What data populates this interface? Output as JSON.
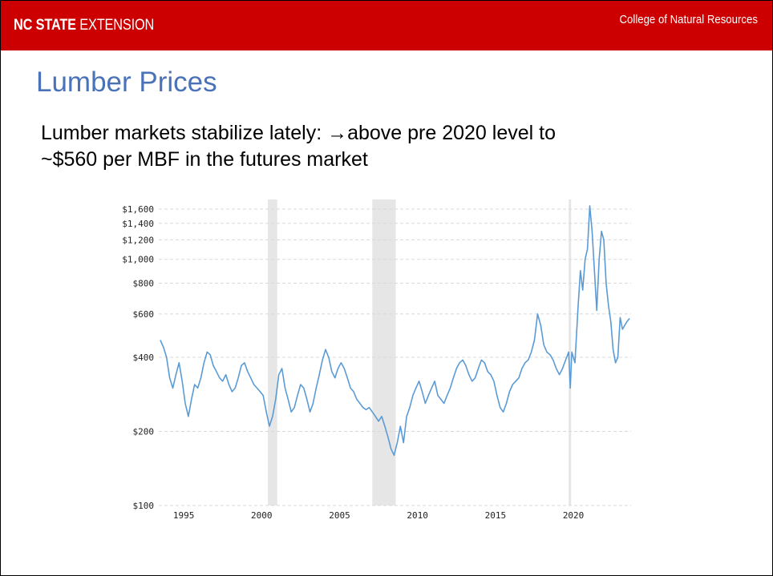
{
  "header": {
    "brand_strong": "NC STATE",
    "brand_rest": " EXTENSION",
    "college": "College of Natural Resources",
    "accent_color": "#cc0000"
  },
  "slide": {
    "title": "Lumber Prices",
    "body_line_1": "Lumber markets stabilize lately: →above pre 2020 level to",
    "body_line_2": "~$560 per MBF in the futures market",
    "title_color": "#4a72b8"
  },
  "chart_data": {
    "type": "line",
    "title": "",
    "xlabel": "",
    "ylabel": "",
    "y_scale": "log",
    "xlim": [
      1993.4,
      2023.7
    ],
    "ylim": [
      100,
      1750
    ],
    "grid": "horizontal-dashed",
    "line_color": "#5b9bd5",
    "y_ticks": [
      {
        "value": 100,
        "label": "$100"
      },
      {
        "value": 200,
        "label": "$200"
      },
      {
        "value": 400,
        "label": "$400"
      },
      {
        "value": 600,
        "label": "$600"
      },
      {
        "value": 800,
        "label": "$800"
      },
      {
        "value": 1000,
        "label": "$1,000"
      },
      {
        "value": 1200,
        "label": "$1,200"
      },
      {
        "value": 1400,
        "label": "$1,400"
      },
      {
        "value": 1600,
        "label": "$1,600"
      }
    ],
    "x_ticks": [
      {
        "value": 1995,
        "label": "1995"
      },
      {
        "value": 2000,
        "label": "2000"
      },
      {
        "value": 2005,
        "label": "2005"
      },
      {
        "value": 2010,
        "label": "2010"
      },
      {
        "value": 2015,
        "label": "2015"
      },
      {
        "value": 2020,
        "label": "2020"
      }
    ],
    "recessions": [
      {
        "start": 2000.4,
        "end": 2001.0
      },
      {
        "start": 2007.1,
        "end": 2008.6
      },
      {
        "start": 2019.7,
        "end": 2019.85
      }
    ],
    "series": [
      {
        "x": [
          1993.5,
          1993.7,
          1993.9,
          1994.1,
          1994.3,
          1994.5,
          1994.7,
          1994.9,
          1995.1,
          1995.3,
          1995.5,
          1995.7,
          1995.9,
          1996.1,
          1996.3,
          1996.5,
          1996.7,
          1996.9,
          1997.1,
          1997.3,
          1997.5,
          1997.7,
          1997.9,
          1998.1,
          1998.3,
          1998.5,
          1998.7,
          1998.9,
          1999.1,
          1999.3,
          1999.5,
          1999.7,
          1999.9,
          2000.1,
          2000.3,
          2000.5,
          2000.7,
          2000.9,
          2001.1,
          2001.3,
          2001.5,
          2001.7,
          2001.9,
          2002.1,
          2002.3,
          2002.5,
          2002.7,
          2002.9,
          2003.1,
          2003.3,
          2003.5,
          2003.7,
          2003.9,
          2004.1,
          2004.3,
          2004.5,
          2004.7,
          2004.9,
          2005.1,
          2005.3,
          2005.5,
          2005.7,
          2005.9,
          2006.1,
          2006.3,
          2006.5,
          2006.7,
          2006.9,
          2007.1,
          2007.3,
          2007.5,
          2007.7,
          2007.9,
          2008.1,
          2008.3,
          2008.5,
          2008.7,
          2008.9,
          2009.1,
          2009.3,
          2009.5,
          2009.7,
          2009.9,
          2010.1,
          2010.3,
          2010.5,
          2010.7,
          2010.9,
          2011.1,
          2011.3,
          2011.5,
          2011.7,
          2011.9,
          2012.1,
          2012.3,
          2012.5,
          2012.7,
          2012.9,
          2013.1,
          2013.3,
          2013.5,
          2013.7,
          2013.9,
          2014.1,
          2014.3,
          2014.5,
          2014.7,
          2014.9,
          2015.1,
          2015.3,
          2015.5,
          2015.7,
          2015.9,
          2016.1,
          2016.3,
          2016.5,
          2016.7,
          2016.9,
          2017.1,
          2017.3,
          2017.5,
          2017.7,
          2017.9,
          2018.1,
          2018.3,
          2018.5,
          2018.7,
          2018.9,
          2019.1,
          2019.3,
          2019.5,
          2019.7,
          2019.8,
          2019.9,
          2020.1,
          2020.3,
          2020.45,
          2020.6,
          2020.75,
          2020.9,
          2021.05,
          2021.2,
          2021.35,
          2021.5,
          2021.65,
          2021.8,
          2021.95,
          2022.1,
          2022.25,
          2022.4,
          2022.55,
          2022.7,
          2022.85,
          2023.0,
          2023.15,
          2023.3,
          2023.45,
          2023.6
        ],
        "y": [
          470,
          440,
          400,
          330,
          300,
          340,
          380,
          320,
          260,
          230,
          270,
          310,
          300,
          330,
          380,
          420,
          410,
          370,
          350,
          330,
          320,
          340,
          310,
          290,
          300,
          330,
          370,
          380,
          350,
          330,
          310,
          300,
          290,
          280,
          240,
          210,
          230,
          270,
          340,
          360,
          300,
          270,
          240,
          250,
          280,
          310,
          300,
          270,
          240,
          260,
          300,
          340,
          390,
          430,
          400,
          350,
          330,
          360,
          380,
          360,
          330,
          300,
          290,
          270,
          260,
          250,
          245,
          250,
          240,
          230,
          220,
          230,
          210,
          190,
          170,
          160,
          180,
          210,
          180,
          230,
          250,
          280,
          300,
          320,
          290,
          260,
          280,
          300,
          320,
          280,
          270,
          260,
          280,
          300,
          330,
          360,
          380,
          390,
          370,
          340,
          320,
          330,
          360,
          390,
          380,
          350,
          340,
          320,
          280,
          250,
          240,
          260,
          290,
          310,
          320,
          330,
          360,
          380,
          390,
          420,
          470,
          600,
          540,
          450,
          420,
          410,
          390,
          360,
          340,
          360,
          390,
          420,
          300,
          420,
          380,
          640,
          900,
          750,
          1000,
          1100,
          1650,
          1300,
          900,
          620,
          1000,
          1300,
          1200,
          800,
          650,
          560,
          430,
          380,
          400,
          580,
          520,
          540,
          560,
          575
        ]
      }
    ]
  }
}
